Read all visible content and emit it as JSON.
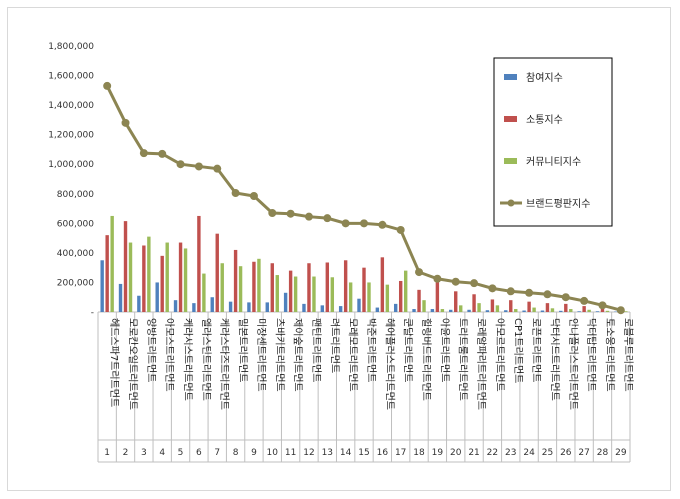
{
  "chart_data": {
    "type": "bar",
    "ylim": [
      0,
      1800000
    ],
    "yticks": [
      "-",
      "200,000",
      "400,000",
      "600,000",
      "800,000",
      "1,000,000",
      "1,200,000",
      "1,400,000",
      "1,600,000",
      "1,800,000"
    ],
    "grid": false,
    "legend_position": "right",
    "categories": [
      "헤드스파7트리트먼트",
      "모로칸오일트리트먼트",
      "양방트리트먼트",
      "아모스트리트먼트",
      "케라시스트리트먼트",
      "엘라스틴트리트먼트",
      "케라스타즈트리트먼트",
      "밀본트리트먼트",
      "미쟝센트리트먼트",
      "츠바키트리트먼트",
      "제이숲트리트먼트",
      "팬틴트리트먼트",
      "려트리트먼트",
      "모레모트리트먼트",
      "박준트리트먼트",
      "헤어플러스트리트먼트",
      "쿤달트리트먼트",
      "힐링버드트리트먼트",
      "아윤트리트먼트",
      "트리트룸트리트먼트",
      "로레알파리트리트먼트",
      "아모르트리트먼트",
      "CP1트리트먼트",
      "로픈트리트먼트",
      "닥터시드트리트먼트",
      "안나플러스트리트먼트",
      "닥터탑트리트먼트",
      "토소웅트리트먼트",
      "로블루트리트먼트"
    ],
    "indices": [
      "1",
      "2",
      "3",
      "4",
      "5",
      "6",
      "7",
      "8",
      "9",
      "10",
      "11",
      "12",
      "13",
      "14",
      "15",
      "16",
      "17",
      "18",
      "19",
      "20",
      "21",
      "22",
      "23",
      "24",
      "25",
      "26",
      "27",
      "28",
      "29"
    ],
    "series": [
      {
        "name": "참여지수",
        "kind": "bar",
        "color": "#4f81bd",
        "values": [
          350000,
          190000,
          110000,
          200000,
          80000,
          60000,
          100000,
          70000,
          65000,
          65000,
          130000,
          55000,
          45000,
          40000,
          90000,
          30000,
          55000,
          20000,
          20000,
          15000,
          15000,
          12000,
          12000,
          10000,
          10000,
          8000,
          5000,
          5000,
          3000
        ]
      },
      {
        "name": "소통지수",
        "kind": "bar",
        "color": "#c0504d",
        "values": [
          520000,
          615000,
          450000,
          380000,
          470000,
          650000,
          530000,
          420000,
          340000,
          330000,
          280000,
          330000,
          335000,
          350000,
          300000,
          370000,
          210000,
          150000,
          200000,
          140000,
          120000,
          85000,
          80000,
          70000,
          60000,
          55000,
          40000,
          30000,
          20000
        ]
      },
      {
        "name": "커뮤니티지수",
        "kind": "bar",
        "color": "#9bbb59",
        "values": [
          650000,
          470000,
          510000,
          470000,
          430000,
          260000,
          330000,
          310000,
          360000,
          250000,
          240000,
          240000,
          235000,
          200000,
          200000,
          185000,
          280000,
          80000,
          20000,
          45000,
          60000,
          45000,
          20000,
          30000,
          25000,
          20000,
          15000,
          8000,
          5000
        ]
      },
      {
        "name": "브랜드평판지수",
        "kind": "line",
        "color": "#8c8552",
        "values": [
          1530000,
          1280000,
          1075000,
          1070000,
          1000000,
          985000,
          970000,
          805000,
          785000,
          670000,
          665000,
          645000,
          635000,
          600000,
          600000,
          590000,
          555000,
          270000,
          225000,
          205000,
          195000,
          160000,
          140000,
          130000,
          120000,
          100000,
          75000,
          45000,
          12000
        ]
      }
    ]
  }
}
